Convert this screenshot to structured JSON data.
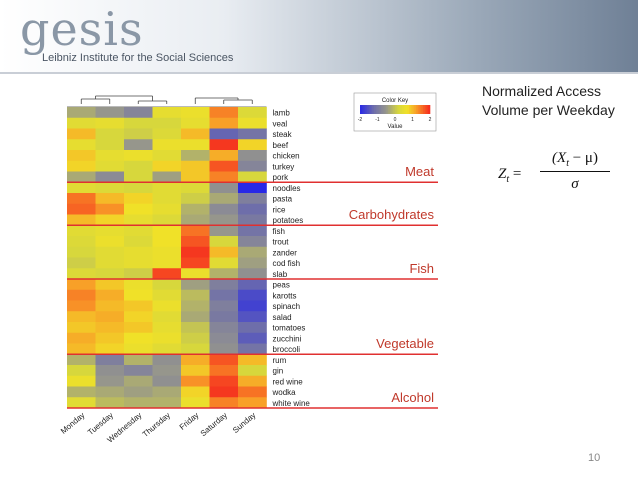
{
  "header": {
    "logo_text": "gesis",
    "subtitle": "Leibniz Institute for the Social Sciences"
  },
  "side_panel": {
    "title_line1": "Normalized Access",
    "title_line2": "Volume per Weekday",
    "formula": {
      "lhs": "Z",
      "lhs_sub": "t",
      "eq": "=",
      "numerator": "(X",
      "numerator_sub": "t",
      "numerator_rest": " − μ)",
      "denominator": "σ"
    }
  },
  "page_number": "10",
  "colors": {
    "group_line": "#e03030",
    "group_text": "#c0392b"
  },
  "chart_data": {
    "type": "heatmap",
    "title": "",
    "color_key": {
      "title": "Color Key",
      "xlabel": "Value",
      "ticks": [
        "-2",
        "-1",
        "0",
        "1",
        "2"
      ],
      "range": [
        -2,
        2
      ]
    },
    "columns": [
      "Monday",
      "Tuesday",
      "Wednesday",
      "Thursday",
      "Friday",
      "Saturday",
      "Sunday"
    ],
    "rows": [
      "lamb",
      "veal",
      "steak",
      "beef",
      "chicken",
      "turkey",
      "pork",
      "noodles",
      "pasta",
      "rice",
      "potatoes",
      "fish",
      "trout",
      "zander",
      "cod fish",
      "slab",
      "peas",
      "karotts",
      "spinach",
      "salad",
      "tomatoes",
      "zucchini",
      "broccoli",
      "rum",
      "gin",
      "red wine",
      "wodka",
      "white wine"
    ],
    "values": [
      [
        -0.3,
        -0.5,
        -0.8,
        0.5,
        0.6,
        1.4,
        0.3
      ],
      [
        0.4,
        0.5,
        0.2,
        0.2,
        0.5,
        1.2,
        0.6
      ],
      [
        1.0,
        0.2,
        0.1,
        0.3,
        1.0,
        -1.3,
        -1.1
      ],
      [
        0.5,
        0.2,
        -0.5,
        0.6,
        0.6,
        1.9,
        0.8
      ],
      [
        0.9,
        0.5,
        0.6,
        0.4,
        -0.2,
        1.1,
        -0.6
      ],
      [
        0.8,
        0.4,
        0.2,
        0.8,
        0.9,
        1.7,
        -0.8
      ],
      [
        -0.3,
        -0.7,
        0.2,
        -0.4,
        0.9,
        1.4,
        0.2
      ],
      [
        0.4,
        0.3,
        0.2,
        0.4,
        0.3,
        -0.6,
        -2.0
      ],
      [
        1.5,
        1.0,
        0.8,
        0.4,
        0.1,
        -0.3,
        -0.9
      ],
      [
        1.6,
        1.3,
        0.7,
        0.5,
        -0.2,
        -0.7,
        -1.2
      ],
      [
        1.0,
        0.8,
        0.5,
        0.3,
        -0.3,
        -0.5,
        -1.0
      ],
      [
        0.4,
        0.5,
        0.4,
        0.7,
        1.5,
        -0.5,
        -1.1
      ],
      [
        0.3,
        0.6,
        0.3,
        0.7,
        1.7,
        0.2,
        -0.8
      ],
      [
        0.2,
        0.4,
        0.5,
        0.6,
        1.9,
        1.0,
        -0.3
      ],
      [
        0.1,
        0.4,
        0.5,
        0.6,
        1.8,
        0.4,
        -0.4
      ],
      [
        0.3,
        0.2,
        0.1,
        1.8,
        0.6,
        -0.2,
        -0.6
      ],
      [
        1.2,
        0.9,
        0.6,
        0.2,
        -0.4,
        -0.9,
        -1.3
      ],
      [
        1.4,
        1.1,
        0.7,
        0.4,
        -0.1,
        -1.1,
        -1.6
      ],
      [
        1.3,
        1.0,
        0.9,
        0.6,
        -0.2,
        -0.9,
        -1.7
      ],
      [
        1.0,
        1.1,
        0.8,
        0.4,
        -0.3,
        -1.0,
        -1.5
      ],
      [
        0.9,
        1.0,
        0.9,
        0.5,
        0.0,
        -0.8,
        -1.2
      ],
      [
        1.1,
        0.9,
        0.7,
        0.6,
        0.1,
        -0.7,
        -1.4
      ],
      [
        1.0,
        0.8,
        0.6,
        0.4,
        0.2,
        -0.6,
        -1.1
      ],
      [
        -0.2,
        -0.9,
        -0.2,
        -0.6,
        1.1,
        1.7,
        1.0
      ],
      [
        0.2,
        -0.6,
        -0.8,
        -0.5,
        0.9,
        1.5,
        0.2
      ],
      [
        0.6,
        -0.5,
        -0.3,
        -0.6,
        1.3,
        1.8,
        1.1
      ],
      [
        -0.2,
        -0.3,
        -0.4,
        -0.3,
        0.8,
        1.9,
        1.5
      ],
      [
        0.4,
        -0.1,
        -0.2,
        -0.2,
        0.6,
        1.4,
        1.2
      ]
    ],
    "groups": [
      {
        "label": "Meat",
        "start": 0,
        "end": 6
      },
      {
        "label": "Carbohydrates",
        "start": 7,
        "end": 10
      },
      {
        "label": "Fish",
        "start": 11,
        "end": 15
      },
      {
        "label": "Vegetable",
        "start": 16,
        "end": 22
      },
      {
        "label": "Alcohol",
        "start": 23,
        "end": 27
      }
    ]
  }
}
